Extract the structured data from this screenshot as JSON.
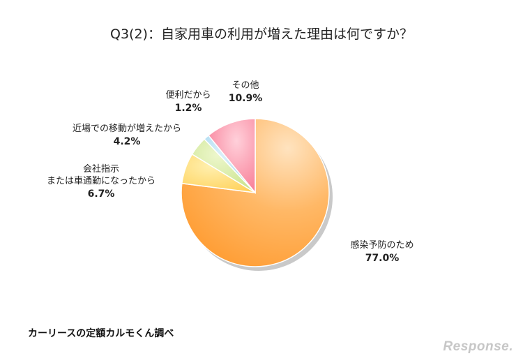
{
  "title": "Q3(2)：自家用車の利用が増えた理由は何ですか？",
  "source": "カーリースの定額カルモくん調べ",
  "brand": "Response.",
  "chart_data": {
    "type": "pie",
    "start": "12 o'clock, clockwise",
    "slices": [
      {
        "key": "infection",
        "label": [
          "感染予防のため"
        ],
        "value": 77.0,
        "display": "77.0%",
        "color": "#FFA040"
      },
      {
        "key": "company",
        "label": [
          "会社指示",
          "または車通勤になったから"
        ],
        "value": 6.7,
        "display": "6.7%",
        "color": "#FFD76A"
      },
      {
        "key": "nearby",
        "label": [
          "近場での移動が増えたから"
        ],
        "value": 4.2,
        "display": "4.2%",
        "color": "#D2E99A"
      },
      {
        "key": "convenient",
        "label": [
          "便利だから"
        ],
        "value": 1.2,
        "display": "1.2%",
        "color": "#A9D9F0"
      },
      {
        "key": "other",
        "label": [
          "その他"
        ],
        "value": 10.9,
        "display": "10.9%",
        "color": "#F7889D"
      }
    ]
  }
}
